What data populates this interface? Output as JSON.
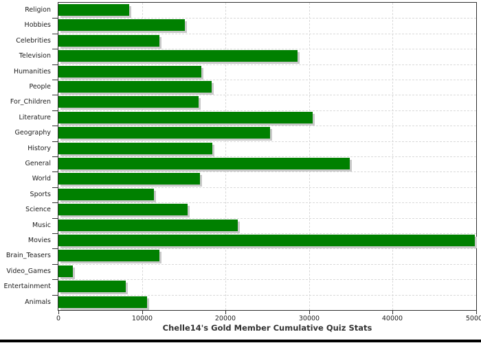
{
  "chart_data": {
    "type": "bar",
    "orientation": "horizontal",
    "title": "Chelle14's Gold Member Cumulative Quiz Stats",
    "categories": [
      "Religion",
      "Hobbies",
      "Celebrities",
      "Television",
      "Humanities",
      "People",
      "For_Children",
      "Literature",
      "Geography",
      "History",
      "General",
      "World",
      "Sports",
      "Science",
      "Music",
      "Movies",
      "Brain_Teasers",
      "Video_Games",
      "Entertainment",
      "Animals"
    ],
    "values": [
      8500,
      15100,
      12100,
      28600,
      17100,
      18300,
      16800,
      30400,
      25300,
      18400,
      34900,
      16900,
      11400,
      15500,
      21500,
      49800,
      12100,
      1700,
      8100,
      10600
    ],
    "xlabel": "",
    "ylabel": "",
    "xlim": [
      0,
      50000
    ],
    "x_ticks": [
      0,
      10000,
      20000,
      30000,
      40000,
      50000
    ],
    "x_tick_labels": [
      "0",
      "10000",
      "20000",
      "30000",
      "40000",
      "50000"
    ],
    "grid": "dashed, vertical at x ticks and horizontal between bars",
    "legend": "none",
    "colors": {
      "bar": "#008000",
      "bar_shadow": "#c9c9c9",
      "grid": "#d9d9d9",
      "axis": "#2e2e2e",
      "tick_text": "#1a1a1a",
      "title_text": "#333333",
      "background": "#ffffff",
      "bottom_strip": "#000000"
    }
  }
}
